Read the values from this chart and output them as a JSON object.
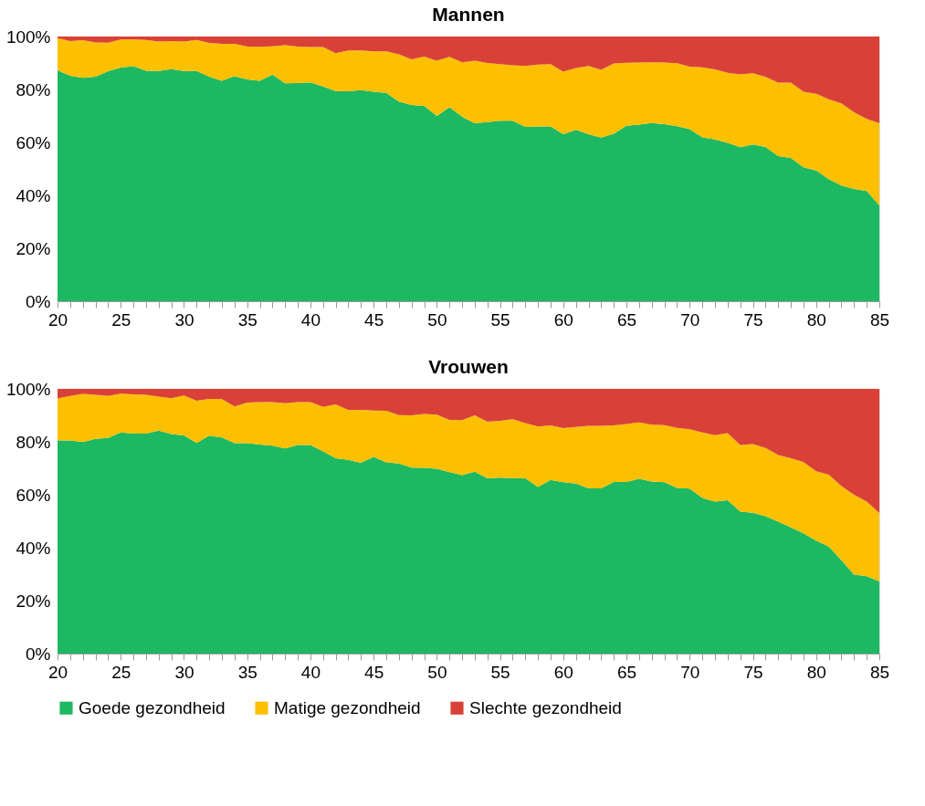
{
  "chart_data": [
    {
      "type": "area",
      "title": "Mannen",
      "stacked": true,
      "x": [
        20,
        21,
        22,
        23,
        24,
        25,
        26,
        27,
        28,
        29,
        30,
        31,
        32,
        33,
        34,
        35,
        36,
        37,
        38,
        39,
        40,
        41,
        42,
        43,
        44,
        45,
        46,
        47,
        48,
        49,
        50,
        51,
        52,
        53,
        54,
        55,
        56,
        57,
        58,
        59,
        60,
        61,
        62,
        63,
        64,
        65,
        66,
        67,
        68,
        69,
        70,
        71,
        72,
        73,
        74,
        75,
        76,
        77,
        78,
        79,
        80,
        81,
        82,
        83,
        84,
        85
      ],
      "series": [
        {
          "color": "#1db862",
          "values": [
            87.2,
            85.2,
            84.4,
            84.8,
            86.9,
            88.3,
            88.8,
            87.1,
            87.0,
            87.7,
            87.0,
            87.0,
            84.8,
            83.3,
            85.0,
            83.8,
            83.3,
            85.6,
            82.3,
            82.4,
            82.7,
            81.1,
            79.4,
            79.3,
            79.7,
            79.1,
            78.7,
            75.4,
            74.1,
            73.8,
            70.0,
            73.3,
            69.7,
            67.2,
            67.7,
            68.2,
            68.2,
            65.9,
            66.0,
            66.0,
            63.1,
            64.7,
            63.1,
            61.8,
            63.3,
            66.3,
            66.7,
            67.3,
            66.9,
            66.1,
            65.0,
            61.9,
            61.1,
            59.8,
            58.2,
            59.2,
            58.3,
            54.8,
            54.1,
            50.6,
            49.4,
            46.1,
            43.7,
            42.4,
            41.6,
            36.2
          ]
        },
        {
          "color": "#fdc000",
          "values": [
            12.2,
            13.1,
            14.2,
            13.0,
            10.8,
            10.6,
            10.1,
            11.6,
            11.1,
            10.6,
            11.1,
            11.7,
            12.8,
            13.9,
            12.2,
            12.4,
            12.8,
            10.7,
            14.4,
            13.8,
            13.3,
            14.9,
            14.3,
            15.4,
            15.0,
            15.3,
            15.7,
            17.9,
            17.3,
            18.6,
            20.9,
            19.0,
            20.6,
            23.7,
            22.3,
            21.4,
            20.9,
            23.0,
            23.4,
            23.6,
            23.6,
            23.4,
            25.8,
            25.6,
            26.5,
            23.8,
            23.5,
            23.0,
            23.3,
            23.8,
            23.6,
            26.5,
            26.5,
            26.5,
            27.5,
            26.9,
            26.4,
            27.8,
            28.5,
            28.5,
            29.0,
            30.2,
            31.0,
            29.0,
            27.3,
            31.0
          ]
        },
        {
          "color": "#d94138",
          "values": [
            0.6,
            1.7,
            1.4,
            2.2,
            2.3,
            1.1,
            1.1,
            1.3,
            1.9,
            1.7,
            1.9,
            1.3,
            2.4,
            2.8,
            2.8,
            3.8,
            3.9,
            3.7,
            3.3,
            3.8,
            4.0,
            4.0,
            6.3,
            5.3,
            5.3,
            5.6,
            5.6,
            6.7,
            8.6,
            7.6,
            9.1,
            7.7,
            9.7,
            9.1,
            10.0,
            10.4,
            10.9,
            11.1,
            10.6,
            10.4,
            13.3,
            11.9,
            11.1,
            12.6,
            10.2,
            9.9,
            9.8,
            9.7,
            9.8,
            10.1,
            11.4,
            11.6,
            12.4,
            13.7,
            14.3,
            13.9,
            15.3,
            17.4,
            17.4,
            20.9,
            21.6,
            23.7,
            25.3,
            28.6,
            31.1,
            32.8
          ]
        }
      ],
      "xlim": [
        20,
        85
      ],
      "xticks": [
        20,
        {
          "value": 21,
          "label": null
        },
        {
          "value": 22,
          "label": null
        },
        {
          "value": 23,
          "label": null
        },
        {
          "value": 24,
          "label": null
        },
        25,
        {
          "value": 26,
          "label": null
        },
        {
          "value": 27,
          "label": null
        },
        {
          "value": 28,
          "label": null
        },
        {
          "value": 29,
          "label": null
        },
        30,
        {
          "value": 31,
          "label": null
        },
        {
          "value": 32,
          "label": null
        },
        {
          "value": 33,
          "label": null
        },
        {
          "value": 34,
          "label": null
        },
        35,
        {
          "value": 36,
          "label": null
        },
        {
          "value": 37,
          "label": null
        },
        {
          "value": 38,
          "label": null
        },
        {
          "value": 39,
          "label": null
        },
        40,
        {
          "value": 41,
          "label": null
        },
        {
          "value": 42,
          "label": null
        },
        {
          "value": 43,
          "label": null
        },
        {
          "value": 44,
          "label": null
        },
        45,
        {
          "value": 46,
          "label": null
        },
        {
          "value": 47,
          "label": null
        },
        {
          "value": 48,
          "label": null
        },
        {
          "value": 49,
          "label": null
        },
        50,
        {
          "value": 51,
          "label": null
        },
        {
          "value": 52,
          "label": null
        },
        {
          "value": 53,
          "label": null
        },
        {
          "value": 54,
          "label": null
        },
        55,
        {
          "value": 56,
          "label": null
        },
        {
          "value": 57,
          "label": null
        },
        {
          "value": 58,
          "label": null
        },
        {
          "value": 59,
          "label": null
        },
        60,
        {
          "value": 61,
          "label": null
        },
        {
          "value": 62,
          "label": null
        },
        {
          "value": 63,
          "label": null
        },
        {
          "value": 64,
          "label": null
        },
        65,
        {
          "value": 66,
          "label": null
        },
        {
          "value": 67,
          "label": null
        },
        {
          "value": 68,
          "label": null
        },
        {
          "value": 69,
          "label": null
        },
        70,
        {
          "value": 71,
          "label": null
        },
        {
          "value": 72,
          "label": null
        },
        {
          "value": 73,
          "label": null
        },
        {
          "value": 74,
          "label": null
        },
        75,
        {
          "value": 76,
          "label": null
        },
        {
          "value": 77,
          "label": null
        },
        {
          "value": 78,
          "label": null
        },
        {
          "value": 79,
          "label": null
        },
        80,
        {
          "value": 81,
          "label": null
        },
        {
          "value": 82,
          "label": null
        },
        {
          "value": 83,
          "label": null
        },
        {
          "value": 84,
          "label": null
        },
        85
      ],
      "ylim": [
        0,
        100
      ],
      "yticks": [
        {
          "value": 0,
          "label": "0%"
        },
        {
          "value": 20,
          "label": "20%"
        },
        {
          "value": 40,
          "label": "40%"
        },
        {
          "value": 60,
          "label": "60%"
        },
        {
          "value": 80,
          "label": "80%"
        },
        {
          "value": 100,
          "label": "100%"
        }
      ]
    },
    {
      "type": "area",
      "title": "Vrouwen",
      "stacked": true,
      "legend": "bottom",
      "x": [
        20,
        21,
        22,
        23,
        24,
        25,
        26,
        27,
        28,
        29,
        30,
        31,
        32,
        33,
        34,
        35,
        36,
        37,
        38,
        39,
        40,
        41,
        42,
        43,
        44,
        45,
        46,
        47,
        48,
        49,
        50,
        51,
        52,
        53,
        54,
        55,
        56,
        57,
        58,
        59,
        60,
        61,
        62,
        63,
        64,
        65,
        66,
        67,
        68,
        69,
        70,
        71,
        72,
        73,
        74,
        75,
        76,
        77,
        78,
        79,
        80,
        81,
        82,
        83,
        84,
        85
      ],
      "series": [
        {
          "name": "Goede gezondheid",
          "color": "#1db862",
          "values": [
            80.5,
            80.5,
            79.9,
            81.1,
            81.5,
            83.5,
            83.1,
            83.1,
            84.2,
            82.9,
            82.4,
            79.6,
            82.3,
            81.6,
            79.5,
            79.5,
            79.0,
            78.5,
            77.5,
            78.8,
            78.8,
            76.4,
            73.8,
            73.2,
            72.1,
            74.3,
            72.2,
            71.8,
            70.3,
            70.2,
            69.8,
            68.5,
            67.4,
            68.7,
            66.2,
            66.5,
            66.3,
            66.2,
            62.9,
            65.6,
            64.7,
            64.2,
            62.4,
            62.4,
            64.8,
            64.8,
            66.0,
            65.0,
            64.7,
            62.6,
            62.3,
            58.8,
            57.4,
            57.9,
            53.6,
            53.2,
            51.9,
            49.8,
            47.7,
            45.4,
            42.7,
            40.4,
            35.3,
            29.8,
            29.2,
            27.2
          ]
        },
        {
          "name": "Matige gezondheid",
          "color": "#fdc000",
          "values": [
            15.9,
            16.8,
            18.2,
            16.7,
            15.8,
            14.7,
            14.8,
            14.7,
            12.9,
            13.6,
            15.1,
            15.9,
            13.9,
            14.5,
            13.9,
            15.3,
            16.0,
            16.5,
            17.1,
            16.2,
            16.2,
            16.8,
            20.3,
            18.8,
            20.0,
            17.5,
            19.5,
            18.3,
            19.7,
            20.3,
            20.5,
            19.8,
            20.8,
            21.3,
            21.4,
            21.4,
            22.2,
            20.9,
            22.9,
            20.6,
            20.5,
            21.4,
            23.6,
            23.6,
            21.4,
            21.9,
            21.3,
            21.5,
            21.6,
            22.7,
            22.4,
            24.7,
            25.1,
            25.4,
            25.2,
            25.9,
            25.8,
            25.2,
            26.1,
            26.9,
            26.2,
            27.2,
            28.0,
            30.2,
            28.2,
            25.9
          ]
        },
        {
          "name": "Slechte gezondheid",
          "color": "#d94138",
          "values": [
            3.6,
            2.7,
            1.9,
            2.2,
            2.7,
            1.8,
            2.1,
            2.2,
            2.9,
            3.5,
            2.5,
            4.5,
            3.8,
            3.9,
            6.6,
            5.2,
            5.0,
            5.0,
            5.4,
            5.0,
            5.0,
            6.8,
            5.9,
            8.0,
            7.9,
            8.2,
            8.3,
            9.9,
            10.0,
            9.5,
            9.7,
            11.7,
            11.8,
            10.0,
            12.4,
            12.1,
            11.5,
            12.9,
            14.2,
            13.8,
            14.8,
            14.4,
            14.0,
            14.0,
            13.8,
            13.3,
            12.7,
            13.5,
            13.7,
            14.7,
            15.3,
            16.5,
            17.5,
            16.7,
            21.2,
            20.9,
            22.3,
            25.0,
            26.2,
            27.7,
            31.1,
            32.4,
            36.7,
            40.0,
            42.6,
            46.9
          ]
        }
      ],
      "xlim": [
        20,
        85
      ],
      "xticks": [
        20,
        {
          "value": 21,
          "label": null
        },
        {
          "value": 22,
          "label": null
        },
        {
          "value": 23,
          "label": null
        },
        {
          "value": 24,
          "label": null
        },
        25,
        {
          "value": 26,
          "label": null
        },
        {
          "value": 27,
          "label": null
        },
        {
          "value": 28,
          "label": null
        },
        {
          "value": 29,
          "label": null
        },
        30,
        {
          "value": 31,
          "label": null
        },
        {
          "value": 32,
          "label": null
        },
        {
          "value": 33,
          "label": null
        },
        {
          "value": 34,
          "label": null
        },
        35,
        {
          "value": 36,
          "label": null
        },
        {
          "value": 37,
          "label": null
        },
        {
          "value": 38,
          "label": null
        },
        {
          "value": 39,
          "label": null
        },
        40,
        {
          "value": 41,
          "label": null
        },
        {
          "value": 42,
          "label": null
        },
        {
          "value": 43,
          "label": null
        },
        {
          "value": 44,
          "label": null
        },
        45,
        {
          "value": 46,
          "label": null
        },
        {
          "value": 47,
          "label": null
        },
        {
          "value": 48,
          "label": null
        },
        {
          "value": 49,
          "label": null
        },
        50,
        {
          "value": 51,
          "label": null
        },
        {
          "value": 52,
          "label": null
        },
        {
          "value": 53,
          "label": null
        },
        {
          "value": 54,
          "label": null
        },
        55,
        {
          "value": 56,
          "label": null
        },
        {
          "value": 57,
          "label": null
        },
        {
          "value": 58,
          "label": null
        },
        {
          "value": 59,
          "label": null
        },
        60,
        {
          "value": 61,
          "label": null
        },
        {
          "value": 62,
          "label": null
        },
        {
          "value": 63,
          "label": null
        },
        {
          "value": 64,
          "label": null
        },
        65,
        {
          "value": 66,
          "label": null
        },
        {
          "value": 67,
          "label": null
        },
        {
          "value": 68,
          "label": null
        },
        {
          "value": 69,
          "label": null
        },
        70,
        {
          "value": 71,
          "label": null
        },
        {
          "value": 72,
          "label": null
        },
        {
          "value": 73,
          "label": null
        },
        {
          "value": 74,
          "label": null
        },
        75,
        {
          "value": 76,
          "label": null
        },
        {
          "value": 77,
          "label": null
        },
        {
          "value": 78,
          "label": null
        },
        {
          "value": 79,
          "label": null
        },
        80,
        {
          "value": 81,
          "label": null
        },
        {
          "value": 82,
          "label": null
        },
        {
          "value": 83,
          "label": null
        },
        {
          "value": 84,
          "label": null
        },
        85
      ],
      "ylim": [
        0,
        100
      ],
      "yticks": [
        {
          "value": 0,
          "label": "0%"
        },
        {
          "value": 20,
          "label": "20%"
        },
        {
          "value": 40,
          "label": "40%"
        },
        {
          "value": 60,
          "label": "60%"
        },
        {
          "value": 80,
          "label": "80%"
        },
        {
          "value": 100,
          "label": "100%"
        }
      ]
    }
  ]
}
